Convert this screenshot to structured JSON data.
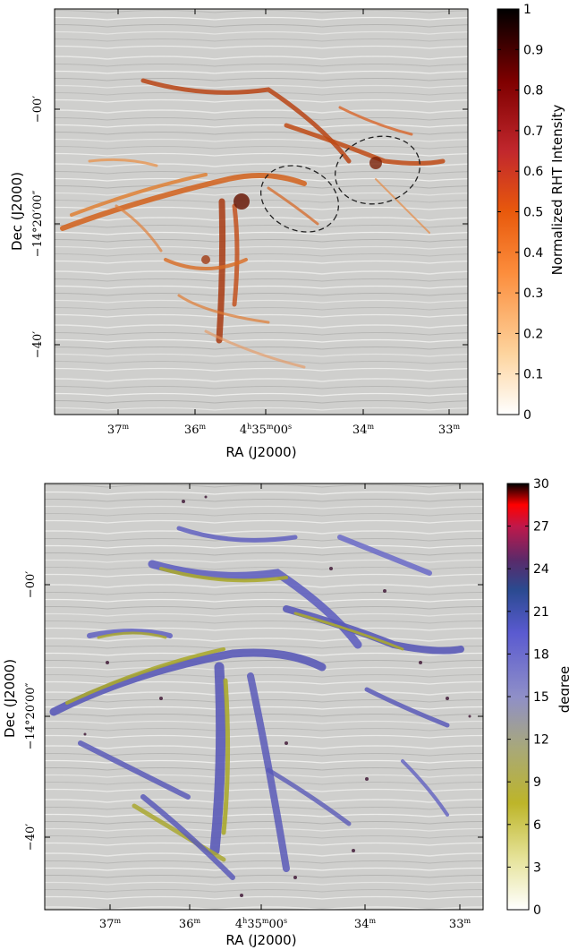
{
  "panels": [
    {
      "id": "top",
      "xlabel": "RA (J2000)",
      "ylabel": "Dec (J2000)",
      "x_ticks": [
        {
          "label": "37",
          "sup": "m"
        },
        {
          "label": "36",
          "sup": "m"
        },
        {
          "label": "4h35m00s",
          "display": [
            "4",
            "h",
            "35",
            "m",
            "00",
            "s"
          ]
        },
        {
          "label": "34",
          "sup": "m"
        },
        {
          "label": "33",
          "sup": "m"
        }
      ],
      "y_ticks": [
        "−00′",
        "−14°20′00″",
        "−40′"
      ],
      "colorbar": {
        "label": "Normalized RHT Intensity",
        "ticks": [
          "0",
          "0.1",
          "0.2",
          "0.3",
          "0.4",
          "0.5",
          "0.6",
          "0.7",
          "0.8",
          "0.9",
          "1"
        ],
        "range": [
          0,
          1
        ],
        "colors": [
          "#ffffff",
          "#fdd49e",
          "#fc8d3c",
          "#e8590c",
          "#c1272d",
          "#7f0000",
          "#000000"
        ]
      },
      "annotations": [
        "dashed ellipse",
        "dashed ellipse"
      ]
    },
    {
      "id": "bottom",
      "xlabel": "RA (J2000)",
      "ylabel": "Dec (J2000)",
      "x_ticks": [
        {
          "label": "37",
          "sup": "m"
        },
        {
          "label": "36",
          "sup": "m"
        },
        {
          "label": "4h35m00s",
          "display": [
            "4",
            "h",
            "35",
            "m",
            "00",
            "s"
          ]
        },
        {
          "label": "34",
          "sup": "m"
        },
        {
          "label": "33",
          "sup": "m"
        }
      ],
      "y_ticks": [
        "−00′",
        "−14°20′00″",
        "−40′"
      ],
      "colorbar": {
        "label": "degree",
        "ticks": [
          "0",
          "3",
          "6",
          "9",
          "12",
          "15",
          "18",
          "21",
          "24",
          "27",
          "30"
        ],
        "range": [
          0,
          30
        ],
        "colors": [
          "#ffffff",
          "#e6e39a",
          "#bdb529",
          "#a8a87a",
          "#8f8fc8",
          "#5a5ad0",
          "#2a4a90",
          "#5a2a6a",
          "#c0184a",
          "#ff0000",
          "#000000"
        ]
      }
    }
  ]
}
